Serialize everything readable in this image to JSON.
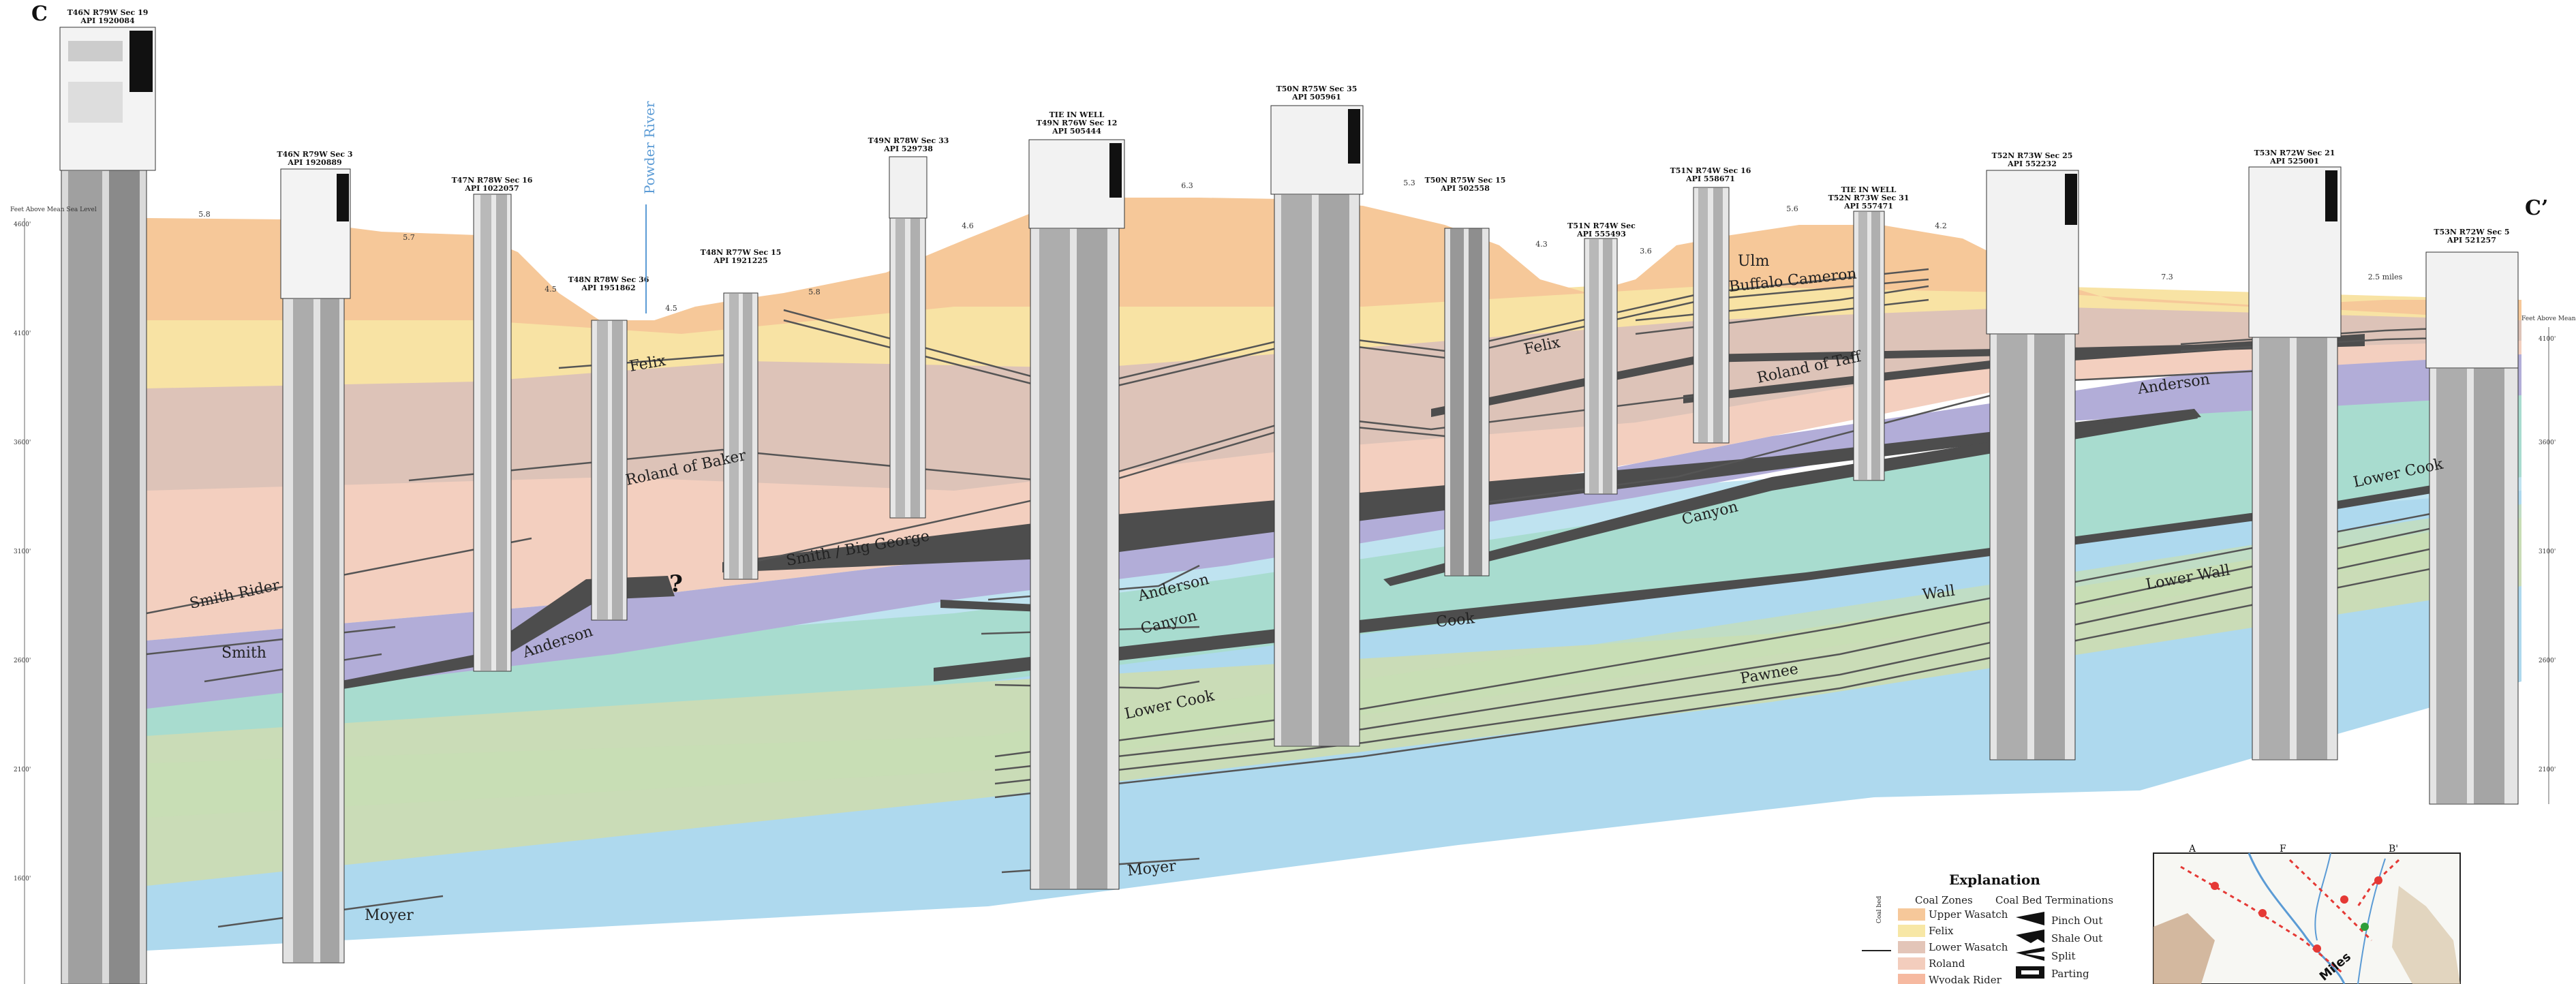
{
  "section": {
    "start_letter": "C",
    "end_letter": "C’",
    "river_label": "Powder River",
    "question_mark": "?"
  },
  "wells": [
    {
      "line1": "T46N R79W Sec 19",
      "line2": "API 1920084"
    },
    {
      "line1": "T46N R79W Sec 3",
      "line2": "API 1920889"
    },
    {
      "line1": "T47N R78W Sec 16",
      "line2": "API 1022057"
    },
    {
      "line1": "T48N R78W Sec 36",
      "line2": "API 1951862"
    },
    {
      "line1": "T48N R77W Sec 15",
      "line2": "API 1921225"
    },
    {
      "line1": "T49N R78W Sec 33",
      "line2": "API 529738"
    },
    {
      "line1": "TIE IN WELL",
      "line2": "T49N R76W Sec 12",
      "line3": "API 505444"
    },
    {
      "line1": "T50N R75W Sec 35",
      "line2": "API 505961"
    },
    {
      "line1": "T50N R75W Sec 15",
      "line2": "API 502558"
    },
    {
      "line1": "T51N R74W Sec",
      "line2": "API 555493"
    },
    {
      "line1": "T51N R74W Sec 16",
      "line2": "API 558671"
    },
    {
      "line1": "TIE IN WELL",
      "line2": "T52N R73W Sec 31",
      "line3": "API 557471"
    },
    {
      "line1": "T52N R73W Sec 25",
      "line2": "API 552232"
    },
    {
      "line1": "T53N R72W Sec 21",
      "line2": "API 525001"
    },
    {
      "line1": "T53N R72W Sec 5",
      "line2": "API 521257"
    }
  ],
  "distances": [
    "5.8",
    "5.7",
    "4.5",
    "4.5",
    "5.8",
    "4.6",
    "6.3",
    "5.3",
    "4.3",
    "3.6",
    "5.6",
    "4.2",
    "7.3",
    "2.5 miles"
  ],
  "elevation_axis": {
    "title_left": "Feet Above Mean Sea Level",
    "title_right": "Feet Above Mean Sea Level",
    "ticks": [
      "4600'",
      "4100'",
      "3600'",
      "3100'",
      "2600'",
      "2100'",
      "1600'"
    ]
  },
  "coal_labels": {
    "felix": "Felix",
    "felix_east": "Felix",
    "roland_baker": "Roland of Baker",
    "roland_taff": "Roland of Taff",
    "smith_big_george": "Smith / Big George",
    "smith_rider": "Smith Rider",
    "smith": "Smith",
    "anderson": "Anderson",
    "anderson_mid": "Anderson",
    "anderson_east": "Anderson",
    "canyon": "Canyon",
    "canyon_east": "Canyon",
    "lower_cook": "Lower Cook",
    "lower_cook_east": "Lower Cook",
    "cook": "Cook",
    "wall": "Wall",
    "lower_wall": "Lower Wall",
    "pawnee": "Pawnee",
    "moyer": "Moyer",
    "moyer_mid": "Moyer",
    "ulm": "Ulm",
    "buffalo_cameron": "Buffalo Cameron"
  },
  "legend": {
    "title": "Explanation",
    "zones_header": "Coal Zones",
    "terminations_header": "Coal Bed Terminations",
    "zones": [
      {
        "label": "Upper Wasatch",
        "color": "#f6c89a"
      },
      {
        "label": "Felix",
        "color": "#f7e7a6"
      },
      {
        "label": "Lower Wasatch",
        "color": "#e3c5b8"
      },
      {
        "label": "Roland",
        "color": "#f3cdbd"
      },
      {
        "label": "Wyodak Rider",
        "color": "#f6b9a0"
      }
    ],
    "terminations": [
      "Pinch Out",
      "Shale Out",
      "Split",
      "Parting"
    ],
    "side_label": "Coal bed"
  },
  "map": {
    "labels": [
      "A",
      "F",
      "B'"
    ],
    "scale_label": "Miles"
  },
  "colors": {
    "upper_wasatch": "#f6c89a",
    "felix_band": "#f9e4a3",
    "lower_wasatch": "#dfc7bd",
    "roland_band": "#f4d2c2",
    "anderson_band": "#b4b0d8",
    "canyon_band": "#a9d8cf",
    "cook_band": "#c9d8ac",
    "wall_band": "#bfe0e2",
    "pawnee_band": "#bde3f2",
    "moyer_band": "#a9d9ef",
    "coal": "#555555",
    "river": "#5b9bd5"
  }
}
